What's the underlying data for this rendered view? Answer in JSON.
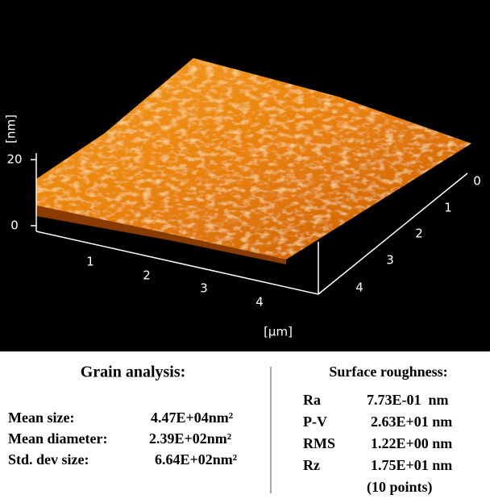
{
  "afm_image": {
    "z_ticks": [
      "20",
      "0"
    ],
    "z_unit": "[nm]",
    "x_ticks": [
      "1",
      "2",
      "3",
      "4"
    ],
    "x_unit": "[µm]",
    "y_ticks": [
      "0",
      "1",
      "2",
      "3",
      "4"
    ]
  },
  "grain_analysis": {
    "title": "Grain analysis:",
    "rows": [
      [
        "Mean size:",
        "4.47E+04nm²"
      ],
      [
        "Mean diameter:",
        "2.39E+02nm²"
      ],
      [
        "Std. dev size:",
        "6.64E+02nm²"
      ]
    ]
  },
  "surface_roughness": {
    "title": "Surface roughness:",
    "rows": [
      [
        "Ra",
        "7.73E-01  nm"
      ],
      [
        "P-V",
        "2.63E+01 nm"
      ],
      [
        "RMS",
        "1.22E+00 nm"
      ],
      [
        "Rz",
        "1.75E+01 nm"
      ]
    ],
    "note": "(10 points)"
  }
}
